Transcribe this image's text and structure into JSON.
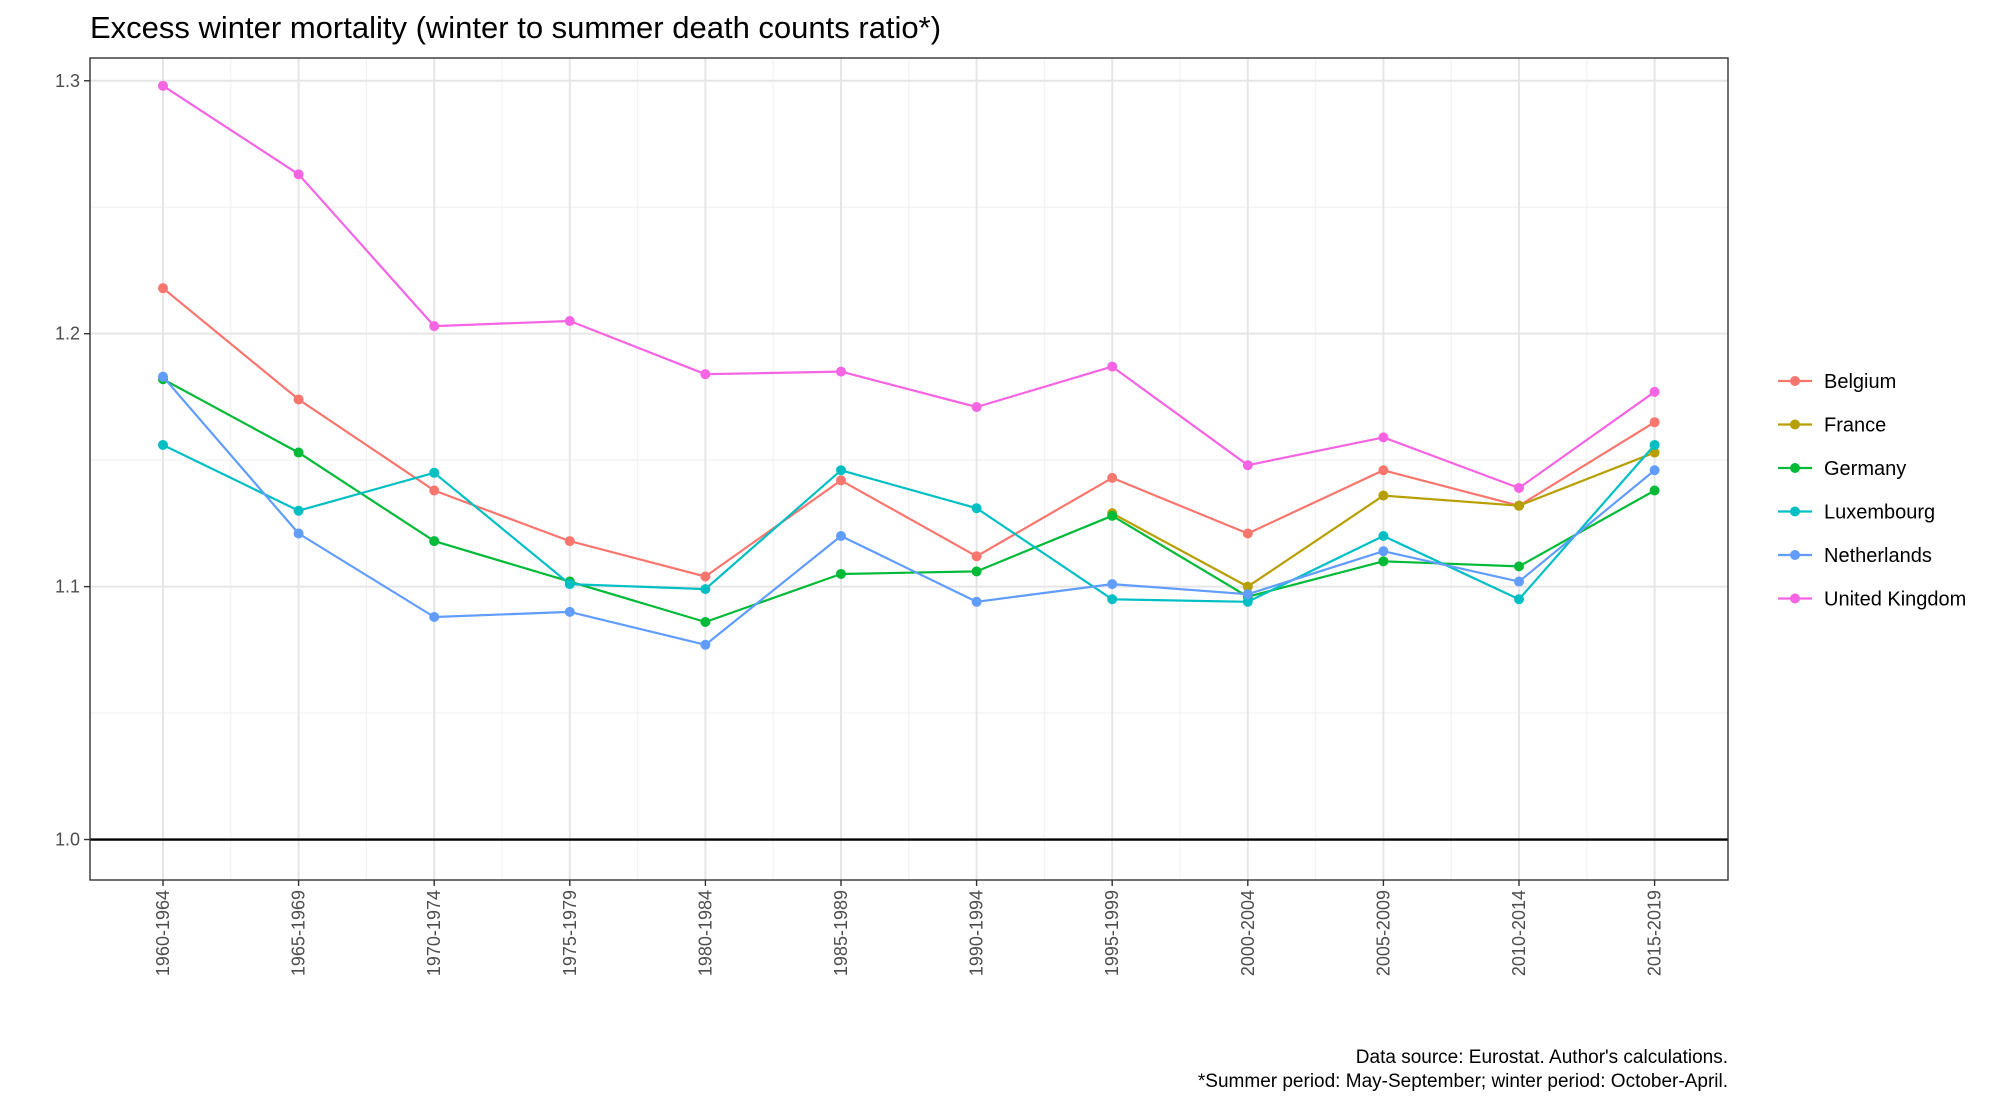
{
  "chart_data": {
    "type": "line",
    "title": "Excess winter mortality (winter to summer death counts ratio*)",
    "xlabel": "",
    "ylabel": "",
    "ylim": [
      0.984,
      1.309
    ],
    "yticks": [
      1.0,
      1.1,
      1.2,
      1.3
    ],
    "ytick_labels": [
      "1.0",
      "1.1",
      "1.2",
      "1.3"
    ],
    "reference_line": 1.0,
    "grid": true,
    "legend_position": "right",
    "categories": [
      "1960-1964",
      "1965-1969",
      "1970-1974",
      "1975-1979",
      "1980-1984",
      "1985-1989",
      "1990-1994",
      "1995-1999",
      "2000-2004",
      "2005-2009",
      "2010-2014",
      "2015-2019"
    ],
    "series": [
      {
        "name": "Belgium",
        "color": "#F8766D",
        "values": [
          1.218,
          1.174,
          1.138,
          1.118,
          1.104,
          1.142,
          1.112,
          1.143,
          1.121,
          1.146,
          1.132,
          1.165
        ]
      },
      {
        "name": "France",
        "color": "#B79F00",
        "values": [
          null,
          null,
          null,
          null,
          null,
          null,
          null,
          1.129,
          1.1,
          1.136,
          1.132,
          1.153
        ]
      },
      {
        "name": "Germany",
        "color": "#00BA38",
        "values": [
          1.182,
          1.153,
          1.118,
          1.102,
          1.086,
          1.105,
          1.106,
          1.128,
          1.096,
          1.11,
          1.108,
          1.138
        ]
      },
      {
        "name": "Luxembourg",
        "color": "#00BFC4",
        "values": [
          1.156,
          1.13,
          1.145,
          1.101,
          1.099,
          1.146,
          1.131,
          1.095,
          1.094,
          1.12,
          1.095,
          1.156
        ]
      },
      {
        "name": "Netherlands",
        "color": "#619CFF",
        "values": [
          1.183,
          1.121,
          1.088,
          1.09,
          1.077,
          1.12,
          1.094,
          1.101,
          1.097,
          1.114,
          1.102,
          1.146
        ]
      },
      {
        "name": "United Kingdom",
        "color": "#F564E3",
        "values": [
          1.298,
          1.263,
          1.203,
          1.205,
          1.184,
          1.185,
          1.171,
          1.187,
          1.148,
          1.159,
          1.139,
          1.177
        ]
      }
    ]
  },
  "caption": {
    "line1": "Data source: Eurostat. Author's calculations.",
    "line2": "*Summer period: May-September; winter period: October-April."
  }
}
